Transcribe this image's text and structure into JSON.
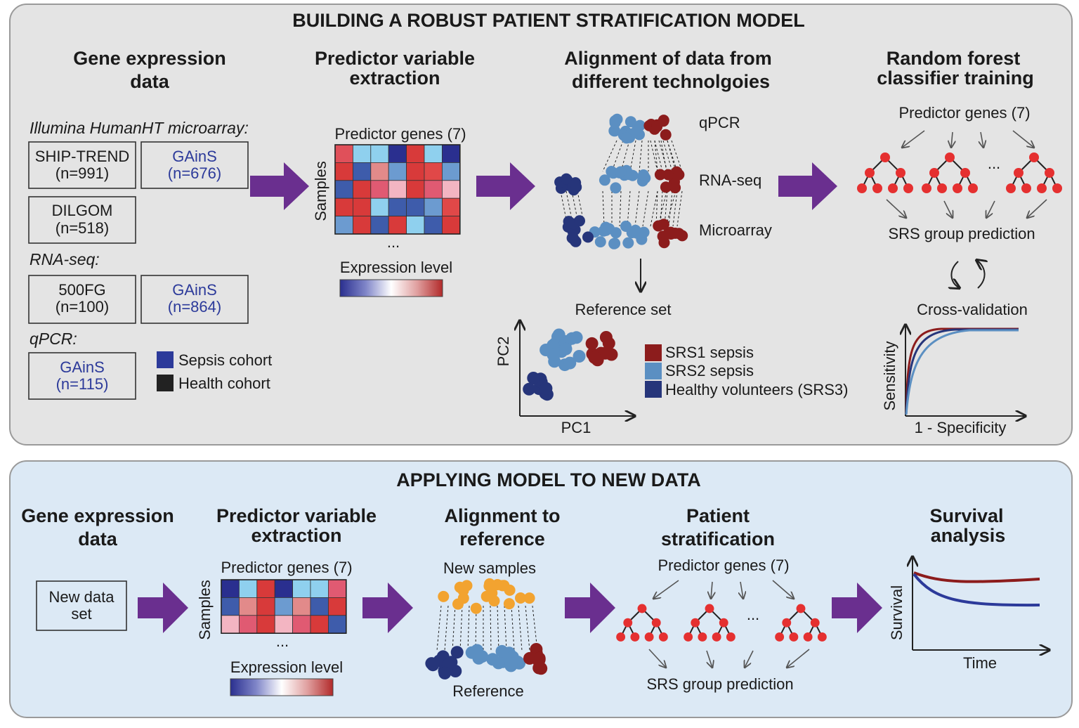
{
  "colors": {
    "top_panel": "#e4e4e4",
    "bottom_panel": "#dce9f5",
    "arrow": "#6a2f8f",
    "srs1": "#8c1c1c",
    "srs2": "#5b8fc2",
    "srs3": "#26357a",
    "new_sample": "#f2a330",
    "node": "#e53030",
    "gains_text": "#2c3a9a"
  },
  "top": {
    "title": "BUILDING A ROBUST PATIENT STRATIFICATION MODEL",
    "col1": {
      "heading_l1": "Gene expression",
      "heading_l2": "data",
      "microarray_label": "Illumina HumanHT microarray:",
      "ship_name": "SHIP-TREND",
      "ship_n": "(n=991)",
      "gains1_name": "GAinS",
      "gains1_n": "(n=676)",
      "dilgom_name": "DILGOM",
      "dilgom_n": "(n=518)",
      "rnaseq_label": "RNA-seq:",
      "fg_name": "500FG",
      "fg_n": "(n=100)",
      "gains2_name": "GAinS",
      "gains2_n": "(n=864)",
      "qpcr_label": "qPCR:",
      "gains3_name": "GAinS",
      "gains3_n": "(n=115)",
      "legend_sepsis": "Sepsis cohort",
      "legend_health": "Health cohort"
    },
    "col2": {
      "heading_l1": "Predictor variable",
      "heading_l2": "extraction",
      "genes_label": "Predictor genes (7)",
      "samples_label": "Samples",
      "ellipsis": "...",
      "expr_label": "Expression level"
    },
    "col3": {
      "heading_l1": "Alignment of data from",
      "heading_l2": "different technolgoies",
      "qpcr": "qPCR",
      "rnaseq": "RNA-seq",
      "microarray": "Microarray",
      "reference_set": "Reference set",
      "pc2": "PC2",
      "pc1": "PC1",
      "legend_srs1": "SRS1 sepsis",
      "legend_srs2": "SRS2 sepsis",
      "legend_srs3": "Healthy volunteers (SRS3)"
    },
    "col4": {
      "heading_l1": "Random forest",
      "heading_l2": "classifier training",
      "genes_label": "Predictor genes (7)",
      "ellipsis": "...",
      "prediction": "SRS group prediction",
      "cross_validation": "Cross-validation",
      "sensitivity": "Sensitivity",
      "specificity": "1 - Specificity"
    }
  },
  "bottom": {
    "title": "APPLYING MODEL TO NEW DATA",
    "col1": {
      "heading_l1": "Gene expression",
      "heading_l2": "data",
      "box_l1": "New data",
      "box_l2": "set"
    },
    "col2": {
      "heading_l1": "Predictor variable",
      "heading_l2": "extraction",
      "genes_label": "Predictor genes (7)",
      "samples_label": "Samples",
      "ellipsis": "...",
      "expr_label": "Expression level"
    },
    "col3": {
      "heading_l1": "Alignment to",
      "heading_l2": "reference",
      "new_samples": "New samples",
      "reference": "Reference"
    },
    "col4": {
      "heading_l1": "Patient",
      "heading_l2": "stratification",
      "genes_label": "Predictor genes (7)",
      "ellipsis": "...",
      "prediction": "SRS group prediction"
    },
    "col5": {
      "heading_l1": "Survival",
      "heading_l2": "analysis",
      "ylabel": "Survival",
      "xlabel": "Time"
    }
  },
  "heatmap_top": [
    [
      "#e0505a",
      "#8fd0ee",
      "#8fd0ee",
      "#2a2f8f",
      "#d83a3a",
      "#8fd0ee",
      "#2a2f8f"
    ],
    [
      "#d83a3a",
      "#3e5cab",
      "#e28a8a",
      "#6c9bd0",
      "#d83a3a",
      "#e04848",
      "#6c9bd0"
    ],
    [
      "#3e5cab",
      "#d83a3a",
      "#e05a72",
      "#f3b5c2",
      "#d83a3a",
      "#e05a72",
      "#f3b5c2"
    ],
    [
      "#d83a3a",
      "#d83a3a",
      "#8fd0ee",
      "#3e5cab",
      "#3e5cab",
      "#6c9bd0",
      "#e04848"
    ],
    [
      "#6c9bd0",
      "#d83a3a",
      "#3e5cab",
      "#d83a3a",
      "#8fd0ee",
      "#3e5cab",
      "#d83a3a"
    ]
  ],
  "heatmap_bottom": [
    [
      "#2a2f8f",
      "#8fd0ee",
      "#d83a3a",
      "#2a2f8f",
      "#8fd0ee",
      "#8fd0ee",
      "#e05a72"
    ],
    [
      "#3e5cab",
      "#e28a8a",
      "#d83a3a",
      "#6c9bd0",
      "#e28a8a",
      "#3e5cab",
      "#d83a3a"
    ],
    [
      "#f3b5c2",
      "#e05a72",
      "#d83a3a",
      "#f3b5c2",
      "#e05a72",
      "#d83a3a",
      "#3e5cab"
    ]
  ]
}
